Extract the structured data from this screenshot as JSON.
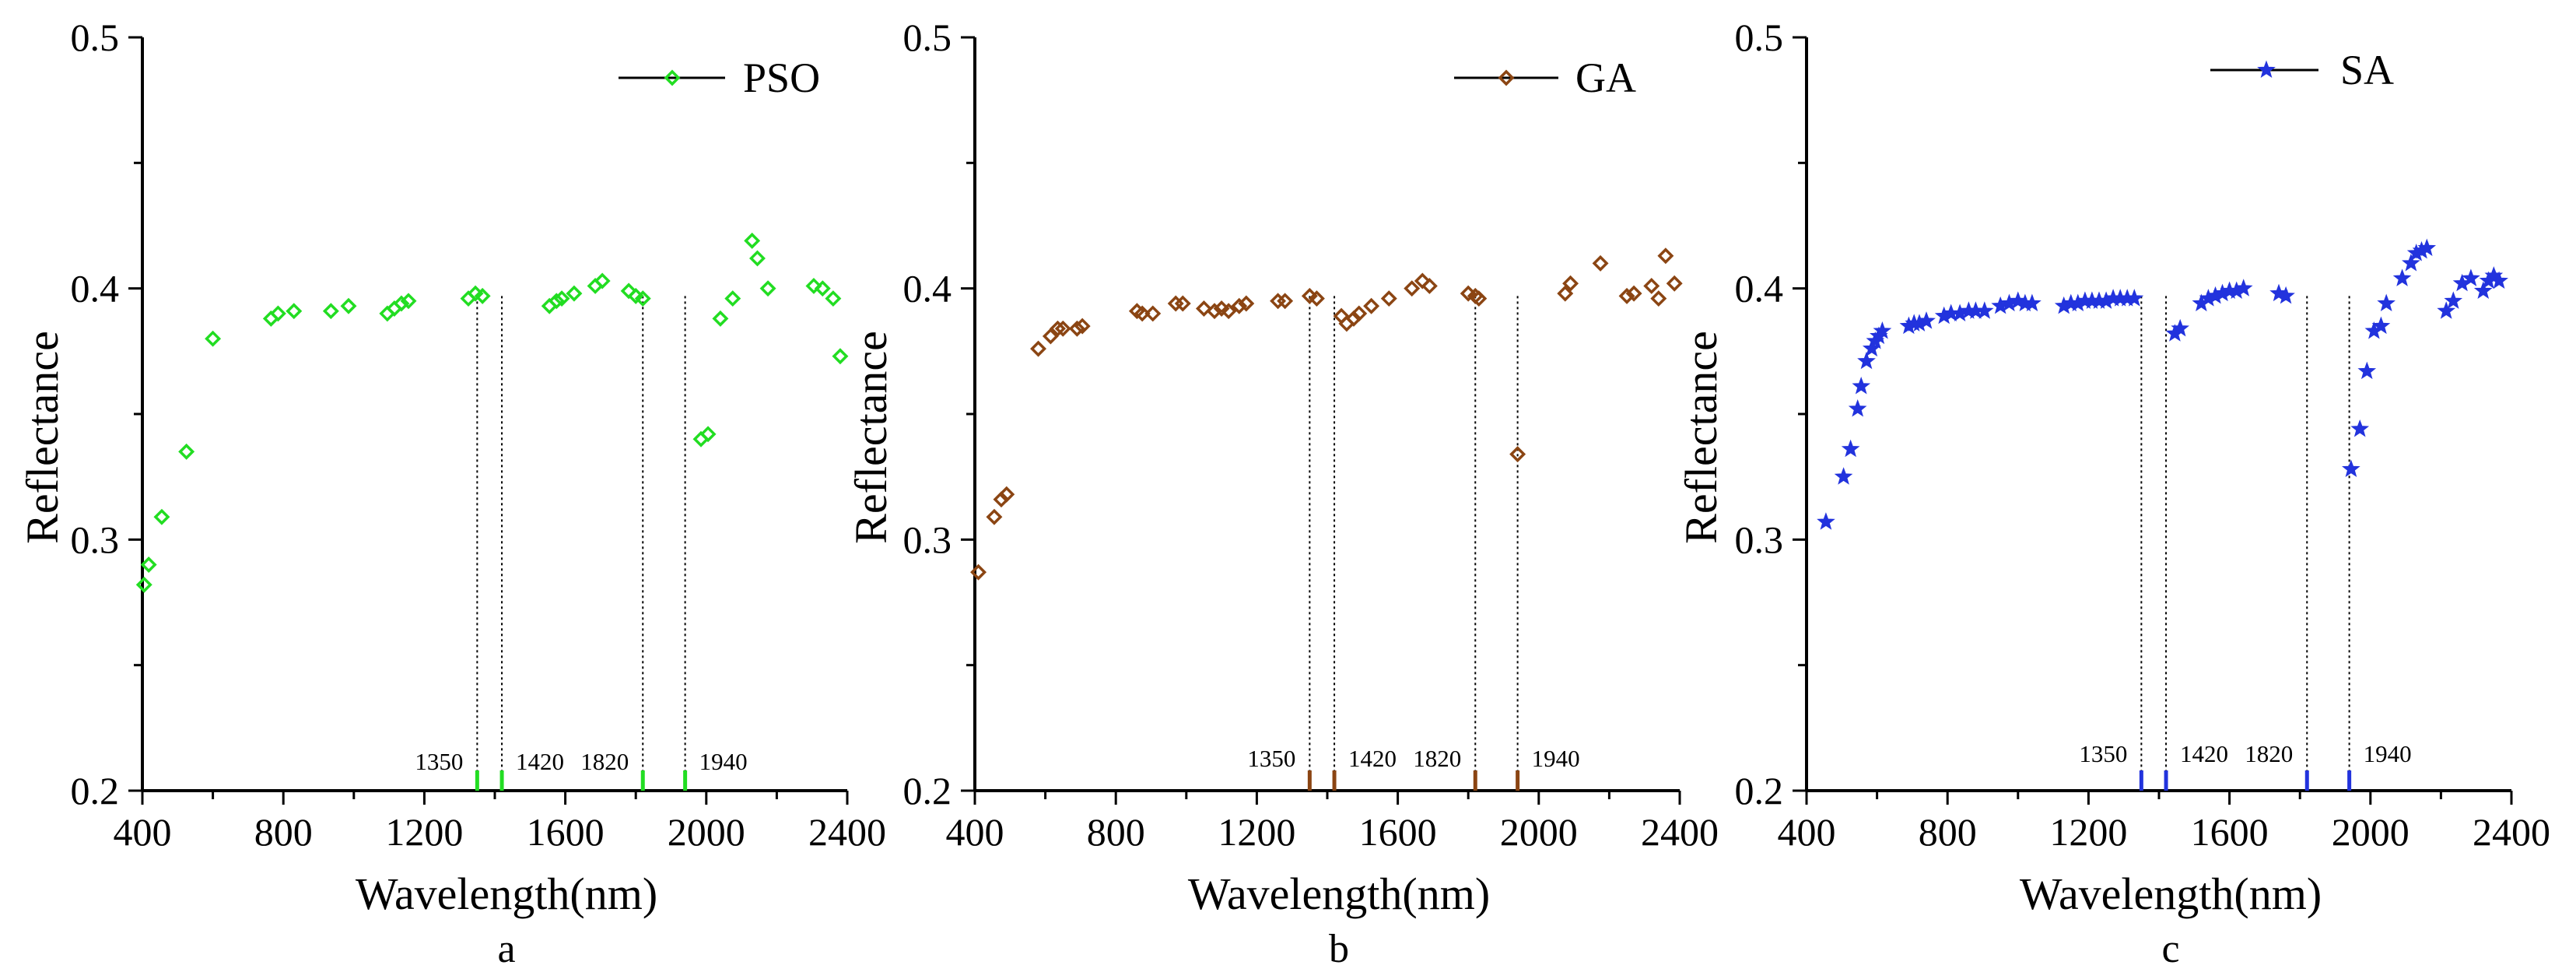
{
  "figure": {
    "panels": [
      "a",
      "b",
      "c"
    ],
    "shared": {
      "xlabel": "Wavelength(nm)",
      "ylabel": "Reflectance",
      "xlim": [
        400,
        2400
      ],
      "ylim": [
        0.2,
        0.5
      ],
      "xticks": [
        "400",
        "800",
        "1200",
        "1600",
        "2000",
        "2400"
      ],
      "yticks": [
        "0.2",
        "0.3",
        "0.4",
        "0.5"
      ],
      "ref_wavelengths": [
        "1350",
        "1420",
        "1820",
        "1940"
      ]
    }
  },
  "chart_data": [
    {
      "type": "scatter",
      "panel_label": "a",
      "legend": "PSO",
      "color": "#22dd22",
      "marker": "diamond",
      "xlabel": "Wavelength(nm)",
      "ylabel": "Reflectance",
      "xlim": [
        400,
        2400
      ],
      "ylim": [
        0.2,
        0.5
      ],
      "reference_lines": [
        1350,
        1420,
        1820,
        1940
      ],
      "x": [
        405,
        418,
        455,
        525,
        600,
        765,
        785,
        830,
        935,
        985,
        1095,
        1115,
        1135,
        1155,
        1325,
        1345,
        1365,
        1555,
        1575,
        1590,
        1625,
        1685,
        1705,
        1780,
        1800,
        1820,
        1985,
        2005,
        2040,
        2075,
        2130,
        2145,
        2175,
        2305,
        2330,
        2360,
        2380
      ],
      "y": [
        0.282,
        0.29,
        0.309,
        0.335,
        0.38,
        0.388,
        0.39,
        0.391,
        0.391,
        0.393,
        0.39,
        0.392,
        0.394,
        0.395,
        0.396,
        0.398,
        0.397,
        0.393,
        0.395,
        0.396,
        0.398,
        0.401,
        0.403,
        0.399,
        0.397,
        0.396,
        0.34,
        0.342,
        0.388,
        0.396,
        0.419,
        0.412,
        0.4,
        0.401,
        0.4,
        0.396,
        0.373
      ]
    },
    {
      "type": "scatter",
      "panel_label": "b",
      "legend": "GA",
      "color": "#8B4513",
      "marker": "diamond",
      "xlabel": "Wavelength(nm)",
      "ylabel": "Reflectance",
      "xlim": [
        400,
        2400
      ],
      "ylim": [
        0.2,
        0.5
      ],
      "reference_lines": [
        1350,
        1420,
        1820,
        1940
      ],
      "x": [
        410,
        455,
        475,
        490,
        580,
        615,
        635,
        650,
        690,
        705,
        860,
        875,
        905,
        970,
        990,
        1050,
        1080,
        1100,
        1120,
        1150,
        1170,
        1260,
        1280,
        1350,
        1370,
        1440,
        1455,
        1475,
        1490,
        1525,
        1575,
        1640,
        1670,
        1690,
        1800,
        1820,
        1830,
        1940,
        2075,
        2090,
        2175,
        2250,
        2270,
        2320,
        2340,
        2360,
        2385
      ],
      "y": [
        0.287,
        0.309,
        0.316,
        0.318,
        0.376,
        0.381,
        0.384,
        0.384,
        0.384,
        0.385,
        0.391,
        0.39,
        0.39,
        0.394,
        0.394,
        0.392,
        0.391,
        0.392,
        0.391,
        0.393,
        0.394,
        0.395,
        0.395,
        0.397,
        0.396,
        0.389,
        0.386,
        0.388,
        0.39,
        0.393,
        0.396,
        0.4,
        0.403,
        0.401,
        0.398,
        0.397,
        0.396,
        0.334,
        0.398,
        0.402,
        0.41,
        0.397,
        0.398,
        0.401,
        0.396,
        0.413,
        0.402
      ]
    },
    {
      "type": "scatter",
      "panel_label": "c",
      "legend": "SA",
      "color": "#2233dd",
      "marker": "star",
      "xlabel": "Wavelength(nm)",
      "ylabel": "Reflectance",
      "xlim": [
        400,
        2400
      ],
      "ylim": [
        0.2,
        0.5
      ],
      "reference_lines": [
        1350,
        1420,
        1820,
        1940
      ],
      "x": [
        455,
        505,
        525,
        545,
        555,
        570,
        585,
        595,
        605,
        615,
        690,
        705,
        720,
        740,
        790,
        810,
        835,
        860,
        880,
        905,
        950,
        975,
        1000,
        1020,
        1040,
        1130,
        1150,
        1170,
        1190,
        1210,
        1230,
        1250,
        1270,
        1290,
        1310,
        1330,
        1445,
        1460,
        1520,
        1540,
        1560,
        1580,
        1600,
        1620,
        1640,
        1740,
        1760,
        1945,
        1970,
        1990,
        2010,
        2030,
        2045,
        2090,
        2115,
        2130,
        2145,
        2160,
        2215,
        2235,
        2260,
        2285,
        2320,
        2335,
        2350,
        2365
      ],
      "y": [
        0.307,
        0.325,
        0.336,
        0.352,
        0.361,
        0.371,
        0.376,
        0.379,
        0.381,
        0.383,
        0.385,
        0.386,
        0.386,
        0.387,
        0.389,
        0.39,
        0.39,
        0.391,
        0.391,
        0.391,
        0.393,
        0.394,
        0.395,
        0.394,
        0.394,
        0.393,
        0.394,
        0.394,
        0.395,
        0.395,
        0.395,
        0.395,
        0.396,
        0.396,
        0.396,
        0.396,
        0.382,
        0.384,
        0.394,
        0.396,
        0.397,
        0.398,
        0.399,
        0.399,
        0.4,
        0.398,
        0.397,
        0.328,
        0.344,
        0.367,
        0.383,
        0.385,
        0.394,
        0.404,
        0.41,
        0.414,
        0.415,
        0.416,
        0.391,
        0.395,
        0.402,
        0.404,
        0.399,
        0.403,
        0.405,
        0.403
      ]
    }
  ]
}
